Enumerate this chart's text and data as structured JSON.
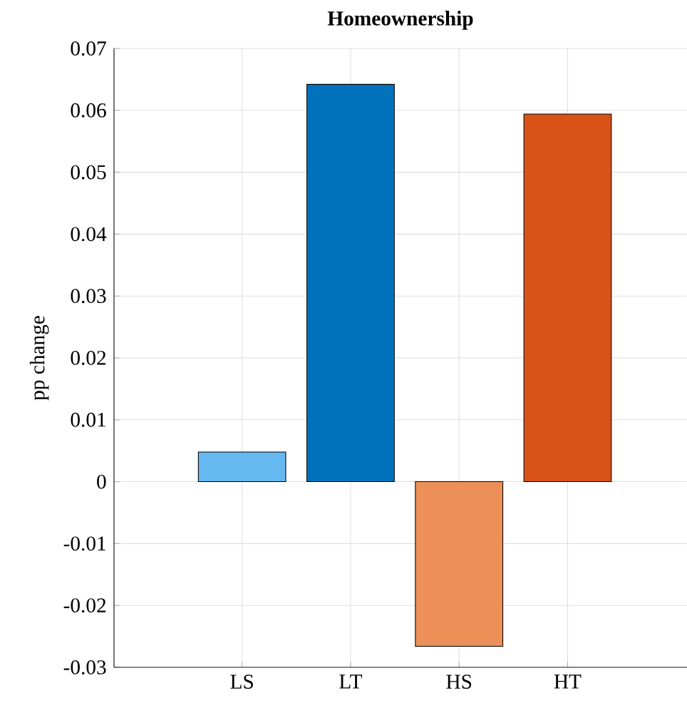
{
  "chart_data": {
    "type": "bar",
    "title": "Homeownership",
    "ylabel": "pp change",
    "categories": [
      "LS",
      "LT",
      "HS",
      "HT"
    ],
    "values": [
      0.0048,
      0.0642,
      -0.0266,
      0.0594
    ],
    "colors": [
      "#66b8f0",
      "#0072bd",
      "#ec9058",
      "#d95319"
    ],
    "ylim": [
      -0.03,
      0.07
    ],
    "yticks": [
      -0.03,
      -0.02,
      -0.01,
      0,
      0.01,
      0.02,
      0.03,
      0.04,
      0.05,
      0.06,
      0.07
    ],
    "grid": true
  }
}
